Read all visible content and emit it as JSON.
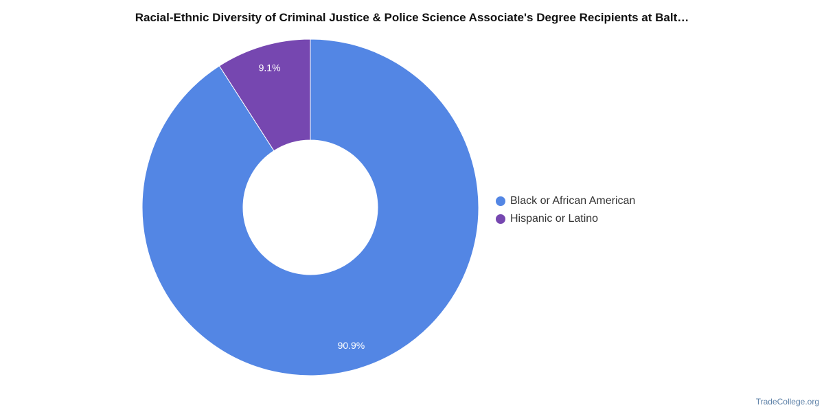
{
  "chart_data": {
    "type": "pie",
    "title": "Racial-Ethnic Diversity of Criminal Justice & Police Science Associate's Degree Recipients at Balt…",
    "donut": true,
    "legend_position": "right",
    "slices": [
      {
        "name": "Black or African American",
        "value": 90.9,
        "label": "90.9%",
        "color": "#5386e4"
      },
      {
        "name": "Hispanic or Latino",
        "value": 9.1,
        "label": "9.1%",
        "color": "#7647b0"
      }
    ]
  },
  "credit": "TradeCollege.org"
}
